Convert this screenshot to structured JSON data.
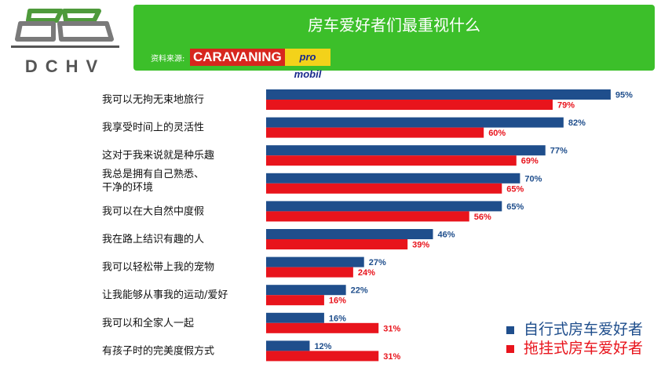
{
  "brand": {
    "logo_text": "DCHV"
  },
  "header": {
    "title": "房车爱好者们最重视什么",
    "source_label": "资料来源:",
    "source_logo1": "CARAVANING",
    "source_logo2": "pro mobil"
  },
  "chart_data": {
    "type": "bar",
    "orientation": "horizontal",
    "title": "房车爱好者们最重视什么",
    "categories": [
      "我可以无拘无束地旅行",
      "我享受时间上的灵活性",
      "这对于我来说就是种乐趣",
      "我总是拥有自己熟悉、\n干净的环境",
      "我可以在大自然中度假",
      "我在路上结识有趣的人",
      "我可以轻松带上我的宠物",
      "让我能够从事我的运动/爱好",
      "我可以和全家人一起",
      "有孩子时的完美度假方式"
    ],
    "series": [
      {
        "name": "自行式房车爱好者",
        "color": "#1f4e8c",
        "values": [
          95,
          82,
          77,
          70,
          65,
          46,
          27,
          22,
          16,
          12
        ]
      },
      {
        "name": "拖挂式房车爱好者",
        "color": "#e8141c",
        "values": [
          79,
          60,
          69,
          65,
          56,
          39,
          24,
          16,
          31,
          31
        ]
      }
    ],
    "value_suffix": "%",
    "xlim": [
      0,
      100
    ],
    "grid": false,
    "legend": "bottom-right"
  }
}
